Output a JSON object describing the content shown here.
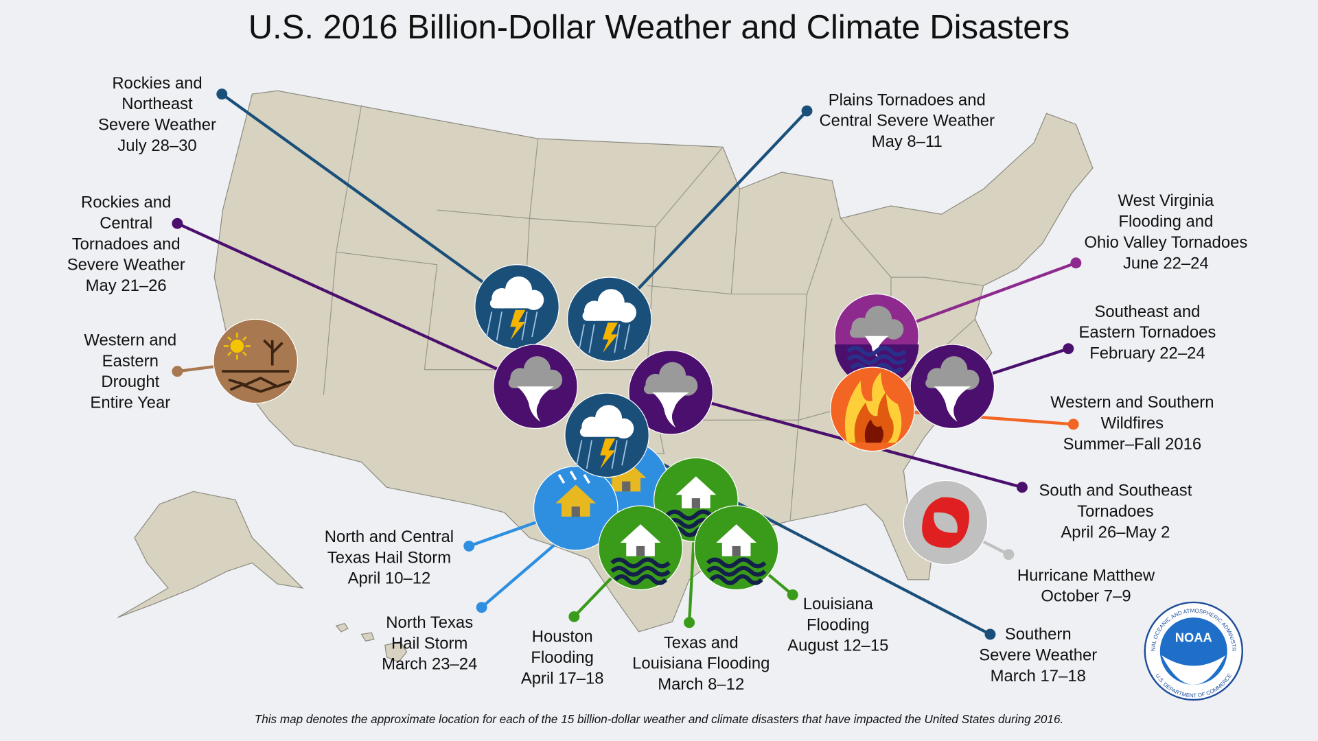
{
  "title": "U.S. 2016 Billion-Dollar Weather and Climate Disasters",
  "footnote": "This map denotes the approximate location for each of the 15 billion-dollar weather and climate disasters that have impacted the United States during 2016.",
  "disasters": [
    {
      "label": [
        "Rockies and",
        "Northeast",
        "Severe Weather",
        "July 28–30"
      ]
    },
    {
      "label": [
        "Plains Tornadoes and",
        "Central Severe Weather",
        "May 8–11"
      ]
    },
    {
      "label": [
        "Rockies and",
        "Central",
        "Tornadoes and",
        "Severe Weather",
        "May 21–26"
      ]
    },
    {
      "label": [
        "Western and",
        "Eastern",
        "Drought",
        "Entire Year"
      ]
    },
    {
      "label": [
        "West Virginia",
        "Flooding and",
        "Ohio Valley Tornadoes",
        "June 22–24"
      ]
    },
    {
      "label": [
        "Southeast and",
        "Eastern Tornadoes",
        "February 22–24"
      ]
    },
    {
      "label": [
        "Western and Southern",
        "Wildfires",
        "Summer–Fall 2016"
      ]
    },
    {
      "label": [
        "South and Southeast",
        "Tornadoes",
        "April 26–May 2"
      ]
    },
    {
      "label": [
        "Hurricane Matthew",
        "October 7–9"
      ]
    },
    {
      "label": [
        "Southern",
        "Severe Weather",
        "March 17–18"
      ]
    },
    {
      "label": [
        "North and Central",
        "Texas Hail Storm",
        "April 10–12"
      ]
    },
    {
      "label": [
        "North Texas",
        "Hail Storm",
        "March 23–24"
      ]
    },
    {
      "label": [
        "Houston",
        "Flooding",
        "April 17–18"
      ]
    },
    {
      "label": [
        "Texas and",
        "Louisiana Flooding",
        "March 8–12"
      ]
    },
    {
      "label": [
        "Louisiana",
        "Flooding",
        "August 12–15"
      ]
    }
  ],
  "logo": {
    "acronym": "NOAA",
    "agency": "NATIONAL OCEANIC AND ATMOSPHERIC ADMINISTRATION",
    "department": "U.S. DEPARTMENT OF COMMERCE"
  }
}
